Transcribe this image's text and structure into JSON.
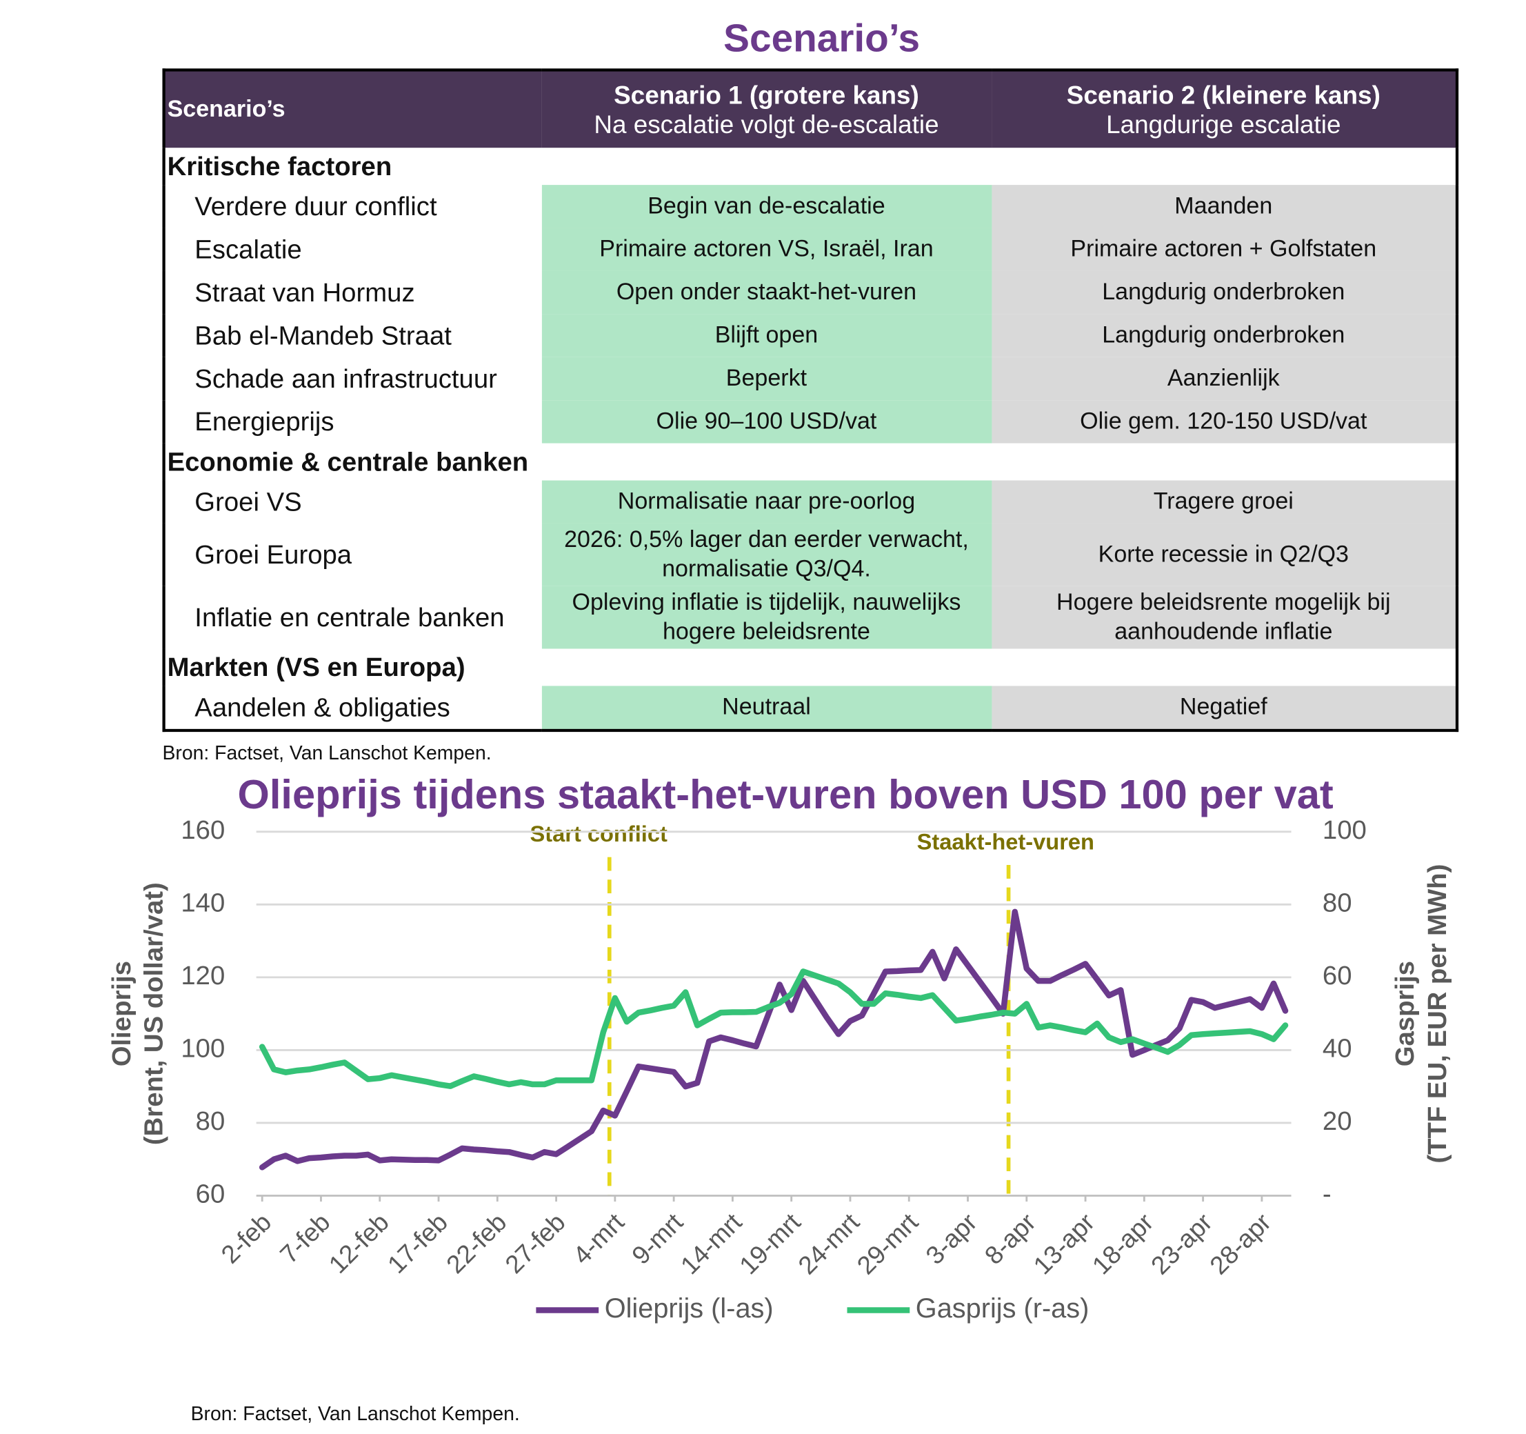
{
  "title": "Scenario’s",
  "table": {
    "columns": [
      {
        "title": "Scenario’s"
      },
      {
        "title": "Scenario 1 (grotere kans)",
        "subtitle": "Na escalatie volgt de-escalatie"
      },
      {
        "title": "Scenario 2 (kleinere kans)",
        "subtitle": "Langdurige escalatie"
      }
    ],
    "sections": [
      {
        "title": "Kritische factoren",
        "rows": [
          [
            "Verdere duur conflict",
            "Begin van de-escalatie",
            "Maanden"
          ],
          [
            "Escalatie",
            "Primaire actoren VS, Israël, Iran",
            "Primaire actoren + Golfstaten"
          ],
          [
            "Straat van Hormuz",
            "Open onder staakt-het-vuren",
            "Langdurig onderbroken"
          ],
          [
            "Bab el-Mandeb Straat",
            "Blijft open",
            "Langdurig onderbroken"
          ],
          [
            "Schade aan infrastructuur",
            "Beperkt",
            "Aanzienlijk"
          ],
          [
            "Energieprijs",
            "Olie 90–100 USD/vat",
            "Olie gem. 120-150 USD/vat"
          ]
        ]
      },
      {
        "title": "Economie & centrale banken",
        "rows": [
          [
            "Groei VS",
            "Normalisatie naar pre-oorlog",
            "Tragere groei"
          ],
          [
            "Groei Europa",
            "2026: 0,5% lager dan eerder verwacht, normalisatie Q3/Q4.",
            "Korte recessie in Q2/Q3"
          ],
          [
            "Inflatie en centrale banken",
            "Opleving inflatie is tijdelijk, nauwelijks hogere beleidsrente",
            "Hogere beleidsrente mogelijk bij aanhoudende inflatie"
          ]
        ]
      },
      {
        "title": "Markten (VS en Europa)",
        "rows": [
          [
            "Aandelen & obligaties",
            "Neutraal",
            "Negatief"
          ]
        ]
      }
    ]
  },
  "table_source": "Bron: Factset, Van Lanschot Kempen.",
  "chart_data": {
    "type": "line",
    "title": "Olieprijs tijdens staakt-het-vuren boven USD 100 per vat",
    "ylabel": [
      "Olieprijs",
      "(Brent, US dollar/vat)"
    ],
    "y2label": [
      "Gasprijs",
      "(TTF EU, EUR per MWh)"
    ],
    "categories": [
      "2-feb",
      null,
      null,
      null,
      null,
      "7-feb",
      null,
      null,
      null,
      null,
      "12-feb",
      null,
      null,
      null,
      null,
      "17-feb",
      null,
      null,
      null,
      null,
      "22-feb",
      null,
      null,
      null,
      null,
      "27-feb",
      null,
      null,
      null,
      null,
      "4-mrt",
      null,
      null,
      null,
      null,
      "9-mrt",
      null,
      null,
      null,
      null,
      "14-mrt",
      null,
      null,
      null,
      null,
      "19-mrt",
      null,
      null,
      null,
      null,
      "24-mrt",
      null,
      null,
      null,
      null,
      "29-mrt",
      null,
      null,
      null,
      null,
      "3-apr",
      null,
      null,
      null,
      null,
      "8-apr",
      null,
      null,
      null,
      null,
      "13-apr",
      null,
      null,
      null,
      null,
      "18-apr",
      null,
      null,
      null,
      null,
      "23-apr",
      null,
      null,
      null,
      null,
      "28-apr",
      null,
      null
    ],
    "series": [
      {
        "name": "Olieprijs (l-as)",
        "color": "#6b3a8c",
        "axis": "y",
        "values": [
          67.8,
          70,
          71,
          69.5,
          70.3,
          70.5,
          70.8,
          71,
          71,
          71.3,
          69.7,
          70,
          69.9,
          69.8,
          69.8,
          69.7,
          71.3,
          73,
          72.7,
          72.5,
          72.2,
          72,
          71.2,
          70.5,
          72,
          71.4,
          73.5,
          75.6,
          77.7,
          83.4,
          82,
          88.7,
          95.5,
          95,
          94.5,
          94,
          90,
          91,
          102.4,
          103.5,
          102.7,
          101.8,
          101,
          109.5,
          118,
          111,
          119,
          114,
          109,
          104.4,
          108,
          109.5,
          115.5,
          121.6,
          121.7,
          121.9,
          122,
          127,
          119.7,
          127.7,
          123.3,
          118.9,
          114.5,
          110,
          138,
          122.4,
          119,
          119,
          120.6,
          122.1,
          123.7,
          119.4,
          115,
          116.5,
          98.7,
          100,
          101.4,
          102.7,
          106,
          113.8,
          113.2,
          111.6,
          112.4,
          113.2,
          114,
          111.6,
          118.3,
          110.8
        ]
      },
      {
        "name": "Gasprijs (r-as)",
        "color": "#35c277",
        "axis": "y2",
        "values": [
          40.9,
          34.7,
          33.9,
          34.4,
          34.7,
          35.3,
          36,
          36.6,
          34.3,
          32,
          32.3,
          33.1,
          32.5,
          31.9,
          31.3,
          30.6,
          30.1,
          31.5,
          32.8,
          32.1,
          31.3,
          30.6,
          31.2,
          30.6,
          30.6,
          31.7,
          31.7,
          31.7,
          31.7,
          44.9,
          54.3,
          47.8,
          50.3,
          50.9,
          51.6,
          52.2,
          55.9,
          46.8,
          48.6,
          50.3,
          50.4,
          50.4,
          50.5,
          51.8,
          53,
          55.4,
          61.6,
          60.5,
          59.4,
          58.3,
          55.9,
          52.7,
          52.7,
          55.6,
          55.2,
          54.7,
          54.3,
          55.1,
          51.6,
          48.1,
          48.6,
          49.2,
          49.7,
          50.3,
          50,
          52.7,
          46.2,
          46.8,
          46.2,
          45.5,
          44.9,
          47.3,
          43.5,
          42.2,
          43,
          41.8,
          40.7,
          39.5,
          41.4,
          44.1,
          44.4,
          44.6,
          44.8,
          45,
          45.2,
          44.4,
          43,
          46.8
        ]
      }
    ],
    "ylim": [
      60,
      160
    ],
    "yticks": [
      60,
      80,
      100,
      120,
      140,
      160
    ],
    "y2lim": [
      0,
      100
    ],
    "y2ticks": [
      {
        "value": 0,
        "label": "-"
      },
      20,
      40,
      60,
      80,
      100
    ],
    "annotations": [
      {
        "text": "Start conflict"
      },
      {
        "text": "Staakt-het-vuren"
      }
    ],
    "grid": true,
    "legend": "bottom",
    "source": "Bron: Factset, Van Lanschot Kempen."
  }
}
